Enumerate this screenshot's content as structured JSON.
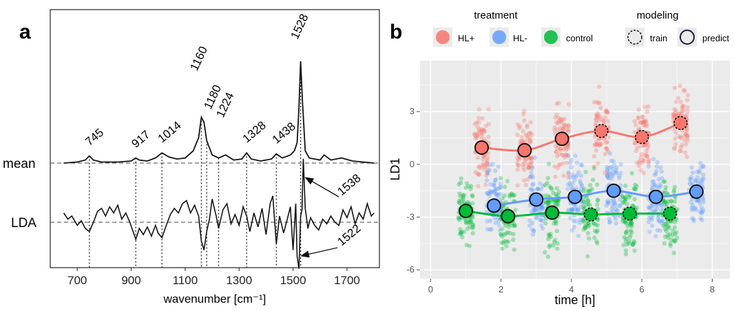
{
  "chart_data": [
    {
      "type": "line",
      "panel_label": "a",
      "xlabel": "wavenumber [cm⁻¹]",
      "xlim": [
        600,
        1820
      ],
      "x_ticks": [
        "700",
        "900",
        "1100",
        "1300",
        "1500",
        "1700"
      ],
      "row_labels": [
        "mean",
        "LDA"
      ],
      "peak_labels": [
        "745",
        "917",
        "1014",
        "1160",
        "1180",
        "1224",
        "1328",
        "1438",
        "1528"
      ],
      "peak_positions": [
        745,
        917,
        1014,
        1160,
        1180,
        1224,
        1328,
        1438,
        1528
      ],
      "arrow_labels": [
        "1538",
        "1522"
      ],
      "arrow_positions": [
        1538,
        1522
      ],
      "series": [
        {
          "name": "mean",
          "x": [
            650,
            700,
            730,
            745,
            760,
            790,
            850,
            900,
            917,
            930,
            960,
            990,
            1014,
            1040,
            1070,
            1100,
            1130,
            1150,
            1160,
            1170,
            1180,
            1200,
            1224,
            1250,
            1280,
            1310,
            1328,
            1345,
            1380,
            1420,
            1438,
            1460,
            1490,
            1505,
            1515,
            1522,
            1528,
            1535,
            1545,
            1560,
            1600,
            1615,
            1640,
            1680,
            1720,
            1760,
            1800
          ],
          "y": [
            0.0,
            0.01,
            0.03,
            0.07,
            0.03,
            0.01,
            0.01,
            0.02,
            0.05,
            0.03,
            0.02,
            0.05,
            0.1,
            0.06,
            0.04,
            0.05,
            0.12,
            0.25,
            0.45,
            0.4,
            0.22,
            0.08,
            0.05,
            0.08,
            0.03,
            0.04,
            0.1,
            0.04,
            0.02,
            0.04,
            0.09,
            0.05,
            0.08,
            0.12,
            0.2,
            0.55,
            1.0,
            0.6,
            0.12,
            0.05,
            0.03,
            0.08,
            0.03,
            0.05,
            0.02,
            0.01,
            0.0
          ]
        },
        {
          "name": "LDA",
          "x": [
            650,
            665,
            680,
            700,
            715,
            730,
            745,
            760,
            775,
            790,
            805,
            820,
            835,
            850,
            865,
            880,
            895,
            905,
            917,
            930,
            945,
            960,
            975,
            990,
            1000,
            1014,
            1030,
            1045,
            1060,
            1075,
            1090,
            1105,
            1120,
            1135,
            1150,
            1160,
            1170,
            1180,
            1190,
            1200,
            1215,
            1224,
            1240,
            1255,
            1270,
            1285,
            1300,
            1315,
            1328,
            1340,
            1355,
            1370,
            1385,
            1400,
            1415,
            1425,
            1438,
            1450,
            1465,
            1480,
            1490,
            1500,
            1510,
            1515,
            1522,
            1528,
            1533,
            1538,
            1545,
            1555,
            1565,
            1580,
            1595,
            1610,
            1625,
            1640,
            1655,
            1670,
            1685,
            1700,
            1715,
            1730,
            1745,
            1760,
            1775,
            1790,
            1800
          ],
          "y": [
            0.3,
            0.1,
            0.2,
            -0.1,
            0.05,
            -0.2,
            -0.3,
            0.0,
            0.35,
            0.45,
            0.2,
            0.5,
            0.3,
            0.55,
            0.1,
            0.3,
            0.0,
            -0.25,
            -0.55,
            -0.2,
            -0.4,
            -0.15,
            -0.45,
            -0.1,
            -0.35,
            -0.5,
            -0.1,
            0.25,
            0.45,
            0.3,
            0.6,
            0.7,
            0.3,
            0.55,
            0.2,
            -0.6,
            -0.9,
            -0.3,
            0.1,
            0.75,
            0.2,
            -0.2,
            0.4,
            0.6,
            -0.05,
            0.25,
            -0.1,
            0.5,
            0.2,
            -0.3,
            0.3,
            -0.15,
            0.45,
            -0.4,
            0.6,
            0.85,
            -0.7,
            0.2,
            -0.35,
            0.15,
            0.5,
            -0.9,
            0.6,
            -1.1,
            -1.5,
            0.2,
            0.4,
            2.05,
            0.45,
            -0.2,
            0.15,
            -0.1,
            -0.25,
            0.1,
            -0.05,
            0.2,
            0.0,
            -0.1,
            0.4,
            0.15,
            0.5,
            -0.05,
            0.3,
            0.1,
            0.6,
            0.2,
            0.3
          ]
        }
      ]
    },
    {
      "type": "scatter",
      "panel_label": "b",
      "xlabel": "time [h]",
      "ylabel": "LD1",
      "xlim": [
        -0.3,
        8.5
      ],
      "ylim": [
        -6.5,
        5.9
      ],
      "x_ticks": [
        0,
        2,
        4,
        6,
        8
      ],
      "y_ticks": [
        3,
        0,
        -3,
        -6
      ],
      "grid": true,
      "legends": {
        "treatment": {
          "title": "treatment",
          "items": [
            "HL+",
            "HL-",
            "control"
          ]
        },
        "modeling": {
          "title": "modeling",
          "items": [
            "train",
            "predict"
          ]
        }
      },
      "legend_placement": "top",
      "series": [
        {
          "name": "HL+",
          "color": "#F8766D",
          "cluster_x": [
            1.45,
            2.67,
            3.73,
            4.85,
            6.0,
            7.1
          ],
          "mean_y": [
            0.95,
            0.8,
            1.45,
            1.9,
            1.55,
            2.35
          ],
          "modeling": [
            "predict",
            "predict",
            "predict",
            "train",
            "train",
            "train"
          ]
        },
        {
          "name": "HL-",
          "color": "#619CFF",
          "cluster_x": [
            1.8,
            3.0,
            4.1,
            5.2,
            6.4,
            7.55
          ],
          "mean_y": [
            -2.35,
            -2.0,
            -1.85,
            -1.5,
            -1.85,
            -1.55
          ],
          "modeling": [
            "predict",
            "predict",
            "predict",
            "predict",
            "predict",
            "predict"
          ]
        },
        {
          "name": "control",
          "color": "#00BA38",
          "cluster_x": [
            1.0,
            2.2,
            3.45,
            4.55,
            5.65,
            6.8
          ],
          "mean_y": [
            -2.65,
            -2.95,
            -2.75,
            -2.85,
            -2.8,
            -2.8
          ],
          "modeling": [
            "predict",
            "predict",
            "predict",
            "train",
            "train",
            "train"
          ]
        }
      ]
    }
  ]
}
